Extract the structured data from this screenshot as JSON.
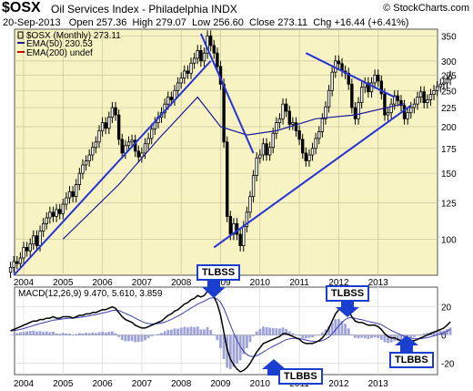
{
  "header": {
    "ticker": "$OSX",
    "name": "Oil Services Index - Philadelphia INDX",
    "source": "© StockCharts.com",
    "date": "20-Sep-2013",
    "open_label": "Open",
    "open": "257.36",
    "high_label": "High",
    "high": "279.07",
    "low_label": "Low",
    "low": "256.60",
    "close_label": "Close",
    "close": "273.11",
    "chg_label": "Chg",
    "chg": "+16.44 (+6.41%)"
  },
  "legend": {
    "main": "$OSX (Monthly) 273.11",
    "ema50": "EMA(50) 230.53",
    "ema200": "EMA(200) undef",
    "macd": "MACD(12,26,9) 9.470, 5.610, 3.859"
  },
  "callouts": {
    "top_left": "TLBSS",
    "top_right": "TLBSS",
    "bottom_left": "TLBBS",
    "bottom_right": "TLBBS"
  },
  "colors": {
    "plot_bg": "#f7f3c2",
    "candle": "#000000",
    "ema50": "#1b1b9c",
    "ema200": "#cc0000",
    "trendline": "#2633d6",
    "macd_hist": "#9da3d8",
    "macd_line": "#000000",
    "signal_line": "#3b3bb0"
  },
  "chart_data": [
    {
      "type": "candlestick",
      "title": "$OSX Oil Services Index - Philadelphia INDX",
      "x_tick_labels": [
        "2004",
        "2005",
        "2006",
        "2007",
        "2008",
        "2009",
        "2010",
        "2011",
        "2012",
        "2013"
      ],
      "y_scale": "log",
      "y_tick_labels": [
        350,
        300,
        275,
        250,
        225,
        200,
        175,
        150,
        125,
        100
      ],
      "ylim": [
        80,
        365
      ],
      "grid": true,
      "series": [
        {
          "name": "$OSX (Monthly)",
          "x_start": "2003-09",
          "close": [
            84,
            87,
            86,
            89,
            95,
            93,
            97,
            102,
            96,
            105,
            110,
            114,
            118,
            115,
            120,
            117,
            124,
            129,
            134,
            130,
            140,
            150,
            158,
            162,
            168,
            176,
            182,
            195,
            205,
            198,
            212,
            225,
            215,
            185,
            170,
            178,
            182,
            184,
            172,
            166,
            170,
            180,
            186,
            197,
            205,
            212,
            218,
            230,
            240,
            236,
            250,
            262,
            270,
            282,
            278,
            296,
            305,
            320,
            300,
            315,
            350,
            330,
            315,
            290,
            260,
            182,
            115,
            103,
            110,
            103,
            96,
            108,
            118,
            130,
            148,
            165,
            168,
            180,
            168,
            176,
            192,
            205,
            210,
            230,
            220,
            203,
            205,
            195,
            185,
            170,
            162,
            168,
            175,
            186,
            194,
            210,
            226,
            250,
            280,
            300,
            295,
            282,
            278,
            260,
            225,
            210,
            232,
            255,
            262,
            248,
            262,
            275,
            265,
            245,
            215,
            218,
            230,
            242,
            235,
            228,
            210,
            218,
            225,
            230,
            240,
            248,
            232,
            236,
            244,
            250,
            256,
            260,
            262,
            268,
            273
          ]
        },
        {
          "name": "EMA(50)",
          "points": [
            [
              "2005-01",
              100
            ],
            [
              "2006-06",
              140
            ],
            [
              "2007-06",
              185
            ],
            [
              "2008-06",
              240
            ],
            [
              "2009-01",
              200
            ],
            [
              "2009-09",
              190
            ],
            [
              "2010-06",
              195
            ],
            [
              "2011-06",
              210
            ],
            [
              "2012-06",
              215
            ],
            [
              "2013-09",
              230.53
            ]
          ]
        }
      ],
      "trendlines": [
        [
          [
            "2003-10",
            80
          ],
          [
            "2008-10",
            300
          ]
        ],
        [
          [
            "2008-07",
            355
          ],
          [
            "2009-11",
            170
          ]
        ],
        [
          [
            "2008-11",
            95
          ],
          [
            "2013-11",
            228
          ]
        ],
        [
          [
            "2011-03",
            315
          ],
          [
            "2013-06",
            240
          ]
        ]
      ]
    },
    {
      "type": "line",
      "title": "MACD(12,26,9)",
      "x_tick_labels": [
        "2004",
        "2005",
        "2006",
        "2007",
        "2008",
        "2009",
        "2010",
        "2011",
        "2012",
        "2013"
      ],
      "y_tick_labels": [
        20,
        0,
        -20
      ],
      "ylim": [
        -28,
        34
      ],
      "x_start": "2003-09",
      "macd": [
        3,
        4,
        5,
        6,
        7,
        8,
        9,
        10,
        10,
        11,
        11,
        12,
        12,
        13,
        12,
        12,
        13,
        13,
        13,
        12,
        13,
        14,
        14,
        15,
        15,
        16,
        16,
        17,
        18,
        18,
        19,
        20,
        19,
        16,
        13,
        11,
        10,
        9,
        7,
        6,
        5,
        5,
        6,
        7,
        8,
        9,
        10,
        12,
        14,
        15,
        17,
        18,
        20,
        22,
        23,
        25,
        26,
        28,
        27,
        28,
        31,
        30,
        27,
        22,
        14,
        2,
        -10,
        -17,
        -21,
        -24,
        -26,
        -25,
        -23,
        -20,
        -16,
        -12,
        -9,
        -6,
        -5,
        -4,
        -3,
        -2,
        -1,
        1,
        1,
        0,
        -1,
        -2,
        -3,
        -5,
        -6,
        -6,
        -6,
        -5,
        -4,
        -2,
        1,
        5,
        10,
        15,
        18,
        19,
        19,
        17,
        13,
        10,
        9,
        9,
        8,
        7,
        7,
        7,
        6,
        4,
        1,
        -1,
        -2,
        -2,
        -3,
        -4,
        -5,
        -5,
        -4,
        -4,
        -3,
        -2,
        -1,
        0,
        1,
        2,
        3,
        4,
        5,
        7,
        9.47
      ]
    }
  ]
}
